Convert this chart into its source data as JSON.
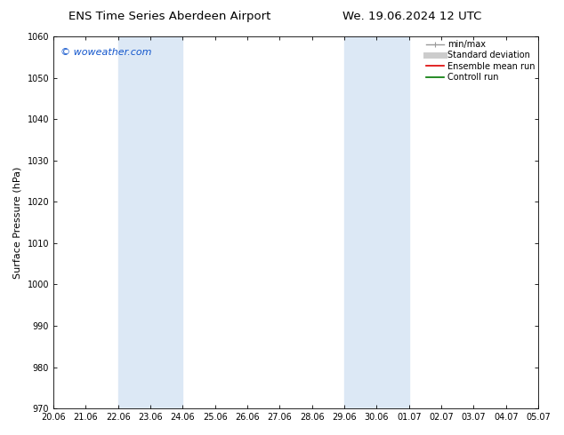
{
  "title_left": "ENS Time Series Aberdeen Airport",
  "title_right": "We. 19.06.2024 12 UTC",
  "ylabel": "Surface Pressure (hPa)",
  "ylim": [
    970,
    1060
  ],
  "yticks": [
    970,
    980,
    990,
    1000,
    1010,
    1020,
    1030,
    1040,
    1050,
    1060
  ],
  "xtick_labels": [
    "20.06",
    "21.06",
    "22.06",
    "23.06",
    "24.06",
    "25.06",
    "26.06",
    "27.06",
    "28.06",
    "29.06",
    "30.06",
    "01.07",
    "02.07",
    "03.07",
    "04.07",
    "05.07"
  ],
  "shaded_regions": [
    {
      "xstart": 2,
      "xend": 4,
      "color": "#dce8f5"
    },
    {
      "xstart": 9,
      "xend": 11,
      "color": "#dce8f5"
    }
  ],
  "watermark": "© woweather.com",
  "watermark_color": "#1155cc",
  "legend_entries": [
    {
      "label": "min/max",
      "color": "#999999",
      "lw": 1.0
    },
    {
      "label": "Standard deviation",
      "color": "#cccccc",
      "lw": 5
    },
    {
      "label": "Ensemble mean run",
      "color": "#dd0000",
      "lw": 1.2
    },
    {
      "label": "Controll run",
      "color": "#007700",
      "lw": 1.2
    }
  ],
  "bg_color": "#ffffff",
  "plot_bg_color": "#ffffff",
  "title_fontsize": 9.5,
  "ylabel_fontsize": 8,
  "tick_fontsize": 7,
  "legend_fontsize": 7,
  "watermark_fontsize": 8
}
